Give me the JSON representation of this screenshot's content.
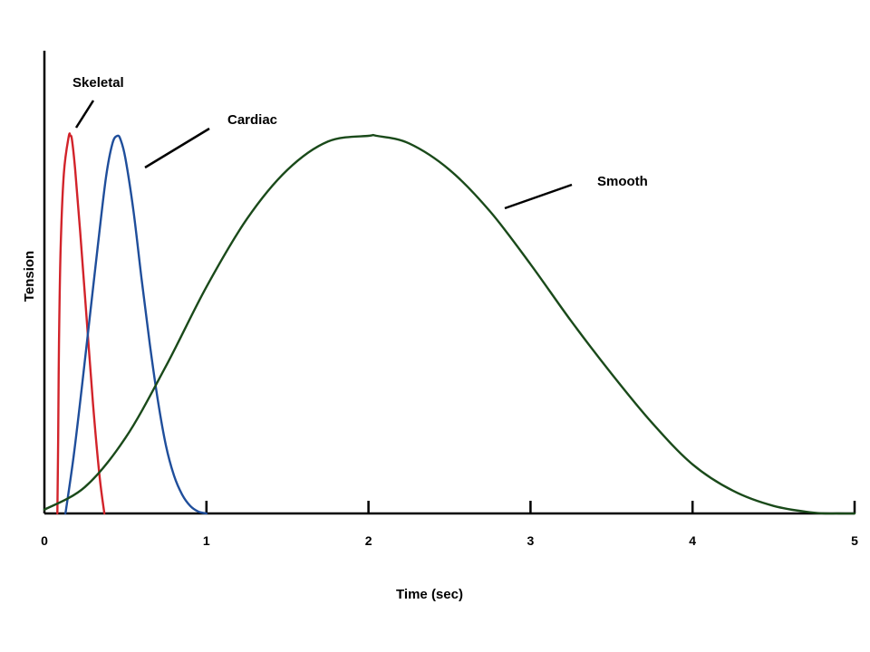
{
  "chart_data": {
    "type": "line",
    "title": "",
    "xlabel": "Time (sec)",
    "ylabel": "Tension",
    "xlim": [
      0,
      5
    ],
    "ylim": [
      0,
      1
    ],
    "x_ticks": [
      0,
      1,
      2,
      3,
      4,
      5
    ],
    "x_tick_labels": [
      "0",
      "1",
      "2",
      "3",
      "4",
      "5"
    ],
    "grid": false,
    "legend": "none",
    "series": [
      {
        "name": "Skeletal",
        "color": "#d2232a",
        "x": [
          0.08,
          0.085,
          0.09,
          0.1,
          0.12,
          0.15,
          0.16,
          0.17,
          0.19,
          0.22,
          0.26,
          0.3,
          0.34,
          0.37
        ],
        "y": [
          0.0,
          0.2,
          0.45,
          0.7,
          0.9,
          0.998,
          1.0,
          0.99,
          0.91,
          0.75,
          0.52,
          0.29,
          0.1,
          0.0
        ]
      },
      {
        "name": "Cardiac",
        "color": "#1f4e9b",
        "x": [
          0.13,
          0.18,
          0.23,
          0.28,
          0.33,
          0.38,
          0.42,
          0.45,
          0.47,
          0.5,
          0.55,
          0.6,
          0.65,
          0.7,
          0.75,
          0.8,
          0.85,
          0.9,
          0.95,
          1.0
        ],
        "y": [
          0.0,
          0.15,
          0.33,
          0.52,
          0.71,
          0.89,
          0.98,
          1.0,
          0.99,
          0.94,
          0.8,
          0.62,
          0.45,
          0.3,
          0.18,
          0.1,
          0.05,
          0.02,
          0.005,
          0.0
        ]
      },
      {
        "name": "Smooth",
        "color": "#1a4a1a",
        "x": [
          0.0,
          0.25,
          0.5,
          0.75,
          1.0,
          1.25,
          1.5,
          1.75,
          2.0,
          2.05,
          2.25,
          2.5,
          2.75,
          3.0,
          3.25,
          3.5,
          3.75,
          4.0,
          4.25,
          4.5,
          4.75,
          4.9,
          5.0
        ],
        "y": [
          0.01,
          0.07,
          0.2,
          0.39,
          0.6,
          0.78,
          0.91,
          0.985,
          1.0,
          1.0,
          0.98,
          0.91,
          0.8,
          0.66,
          0.51,
          0.37,
          0.24,
          0.13,
          0.06,
          0.02,
          0.002,
          0.0,
          0.0
        ]
      }
    ]
  }
}
